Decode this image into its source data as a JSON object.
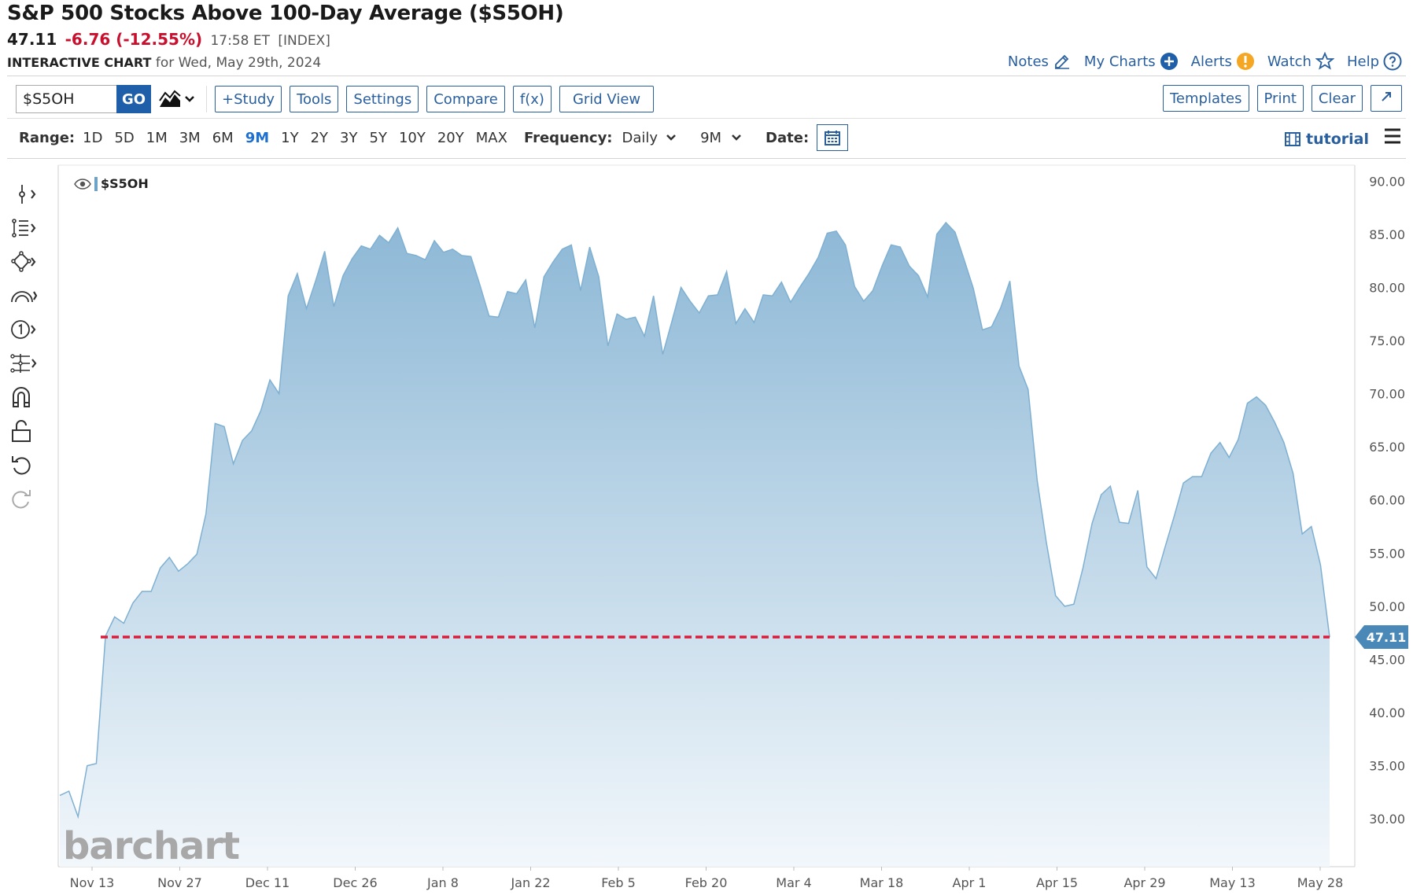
{
  "header": {
    "title": "S&P 500 Stocks Above 100-Day Average ($S5OH)",
    "last": "47.11",
    "change": "-6.76 (-12.55%)",
    "time": "17:58 ET",
    "exchange": "[INDEX]",
    "chart_label": "INTERACTIVE CHART",
    "date_text": "for Wed, May 29th, 2024"
  },
  "toplinks": {
    "notes": "Notes",
    "my_charts": "My Charts",
    "alerts": "Alerts",
    "watch": "Watch",
    "help": "Help"
  },
  "toolbar": {
    "symbol_value": "$S5OH",
    "go": "GO",
    "study": "+Study",
    "tools": "Tools",
    "settings": "Settings",
    "compare": "Compare",
    "fx": "f(x)",
    "grid_view": "Grid View",
    "templates": "Templates",
    "print": "Print",
    "clear": "Clear"
  },
  "rangebar": {
    "range_label": "Range:",
    "ranges": [
      "1D",
      "5D",
      "1M",
      "3M",
      "6M",
      "9M",
      "1Y",
      "2Y",
      "3Y",
      "5Y",
      "10Y",
      "20Y",
      "MAX"
    ],
    "active_range": "9M",
    "frequency_label": "Frequency:",
    "frequency_value": "Daily",
    "period_value": "9M",
    "date_label": "Date:",
    "tutorial": "tutorial"
  },
  "legend": {
    "symbol": "$S5OH"
  },
  "brand": "barchart",
  "colors": {
    "area_top": "#8db8d6",
    "area_bottom": "#f2f7fb",
    "line": "#7fb0d2",
    "last_line": "#d81e3c",
    "accent": "#2a5f9e",
    "change": "#c8102e"
  },
  "chart_data": {
    "type": "area",
    "y_ticks": [
      "90.00",
      "85.00",
      "80.00",
      "75.00",
      "70.00",
      "65.00",
      "60.00",
      "55.00",
      "50.00",
      "45.00",
      "40.00",
      "35.00",
      "30.00"
    ],
    "ylim": [
      25.5,
      91.5
    ],
    "x_ticks": [
      "Nov 13",
      "Nov 27",
      "Dec 11",
      "Dec 26",
      "Jan 8",
      "Jan 22",
      "Feb 5",
      "Feb 20",
      "Mar 4",
      "Mar 18",
      "Apr 1",
      "Apr 15",
      "Apr 29",
      "May 13",
      "May 28"
    ],
    "last_value_label": "47.11",
    "last_value": 47.11,
    "values": [
      32.2,
      32.6,
      30.2,
      35.0,
      35.2,
      47.2,
      49.0,
      48.4,
      50.3,
      51.4,
      51.4,
      53.6,
      54.6,
      53.3,
      54.0,
      54.9,
      58.7,
      67.2,
      66.9,
      63.4,
      65.6,
      66.5,
      68.4,
      71.3,
      70.0,
      79.2,
      81.3,
      78.0,
      80.6,
      83.4,
      78.2,
      81.1,
      82.7,
      83.9,
      83.6,
      84.9,
      84.2,
      85.6,
      83.2,
      83.0,
      82.6,
      84.4,
      83.3,
      83.6,
      83.0,
      82.9,
      80.2,
      77.3,
      77.2,
      79.6,
      79.4,
      80.7,
      76.2,
      81.0,
      82.4,
      83.6,
      84.0,
      79.7,
      83.8,
      81.0,
      74.5,
      77.5,
      77.0,
      77.2,
      75.4,
      79.2,
      73.7,
      76.8,
      80.0,
      78.7,
      77.6,
      79.2,
      79.3,
      81.5,
      76.6,
      78.0,
      76.7,
      79.3,
      79.2,
      80.5,
      78.6,
      80.0,
      81.3,
      82.8,
      85.1,
      85.3,
      84.0,
      80.1,
      78.7,
      79.7,
      82.0,
      84.0,
      83.8,
      82.0,
      81.1,
      79.1,
      85.0,
      86.1,
      85.2,
      82.6,
      79.9,
      76.0,
      76.3,
      78.1,
      80.6,
      72.6,
      70.4,
      61.8,
      56.0,
      51.0,
      50.0,
      50.2,
      53.6,
      57.8,
      60.5,
      61.3,
      57.9,
      57.8,
      60.9,
      53.7,
      52.6,
      55.6,
      58.5,
      61.6,
      62.2,
      62.2,
      64.4,
      65.4,
      64.0,
      65.7,
      69.1,
      69.7,
      68.9,
      67.3,
      65.4,
      62.5,
      56.8,
      57.5,
      53.9,
      47.1
    ]
  }
}
